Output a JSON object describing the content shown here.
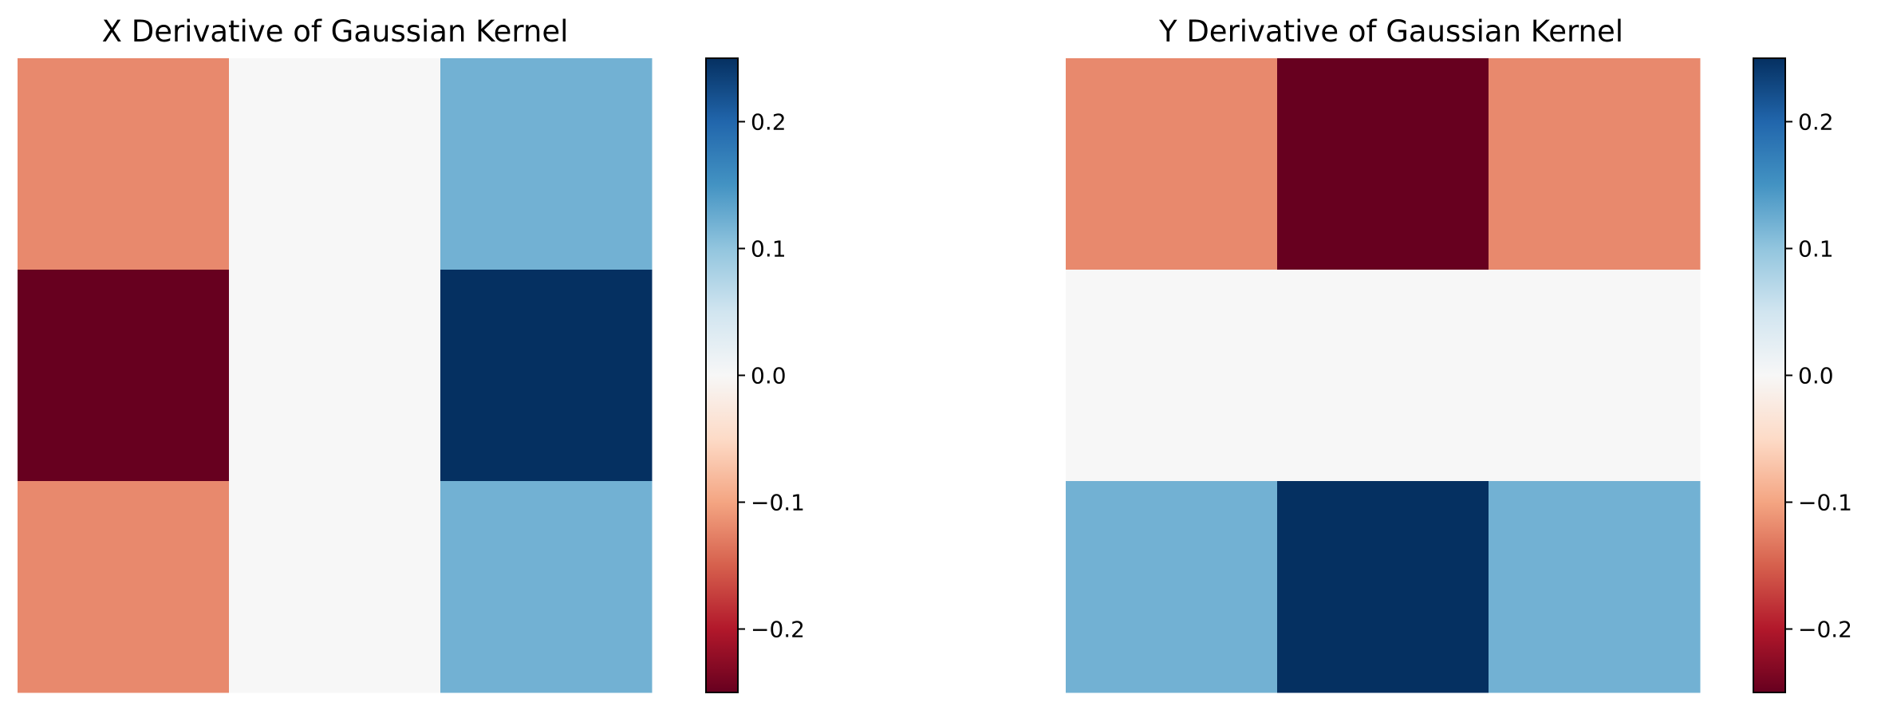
{
  "chart_data": [
    {
      "type": "heatmap",
      "title": "X Derivative of Gaussian Kernel",
      "values": [
        [
          -0.12,
          0.0,
          0.12
        ],
        [
          -0.25,
          0.0,
          0.25
        ],
        [
          -0.12,
          0.0,
          0.12
        ]
      ],
      "colormap": "RdBu",
      "vmin": -0.25,
      "vmax": 0.25,
      "colorbar": {
        "ticks": [
          0.2,
          0.1,
          0.0,
          -0.1,
          -0.2
        ],
        "tick_labels": [
          "0.2",
          "0.1",
          "0.0",
          "−0.1",
          "−0.2"
        ]
      },
      "axes_visible": false
    },
    {
      "type": "heatmap",
      "title": "Y Derivative of Gaussian Kernel",
      "values": [
        [
          -0.12,
          -0.25,
          -0.12
        ],
        [
          0.0,
          0.0,
          0.0
        ],
        [
          0.12,
          0.25,
          0.12
        ]
      ],
      "colormap": "RdBu",
      "vmin": -0.25,
      "vmax": 0.25,
      "colorbar": {
        "ticks": [
          0.2,
          0.1,
          0.0,
          -0.1,
          -0.2
        ],
        "tick_labels": [
          "0.2",
          "0.1",
          "0.0",
          "−0.1",
          "−0.2"
        ]
      },
      "axes_visible": false
    }
  ]
}
